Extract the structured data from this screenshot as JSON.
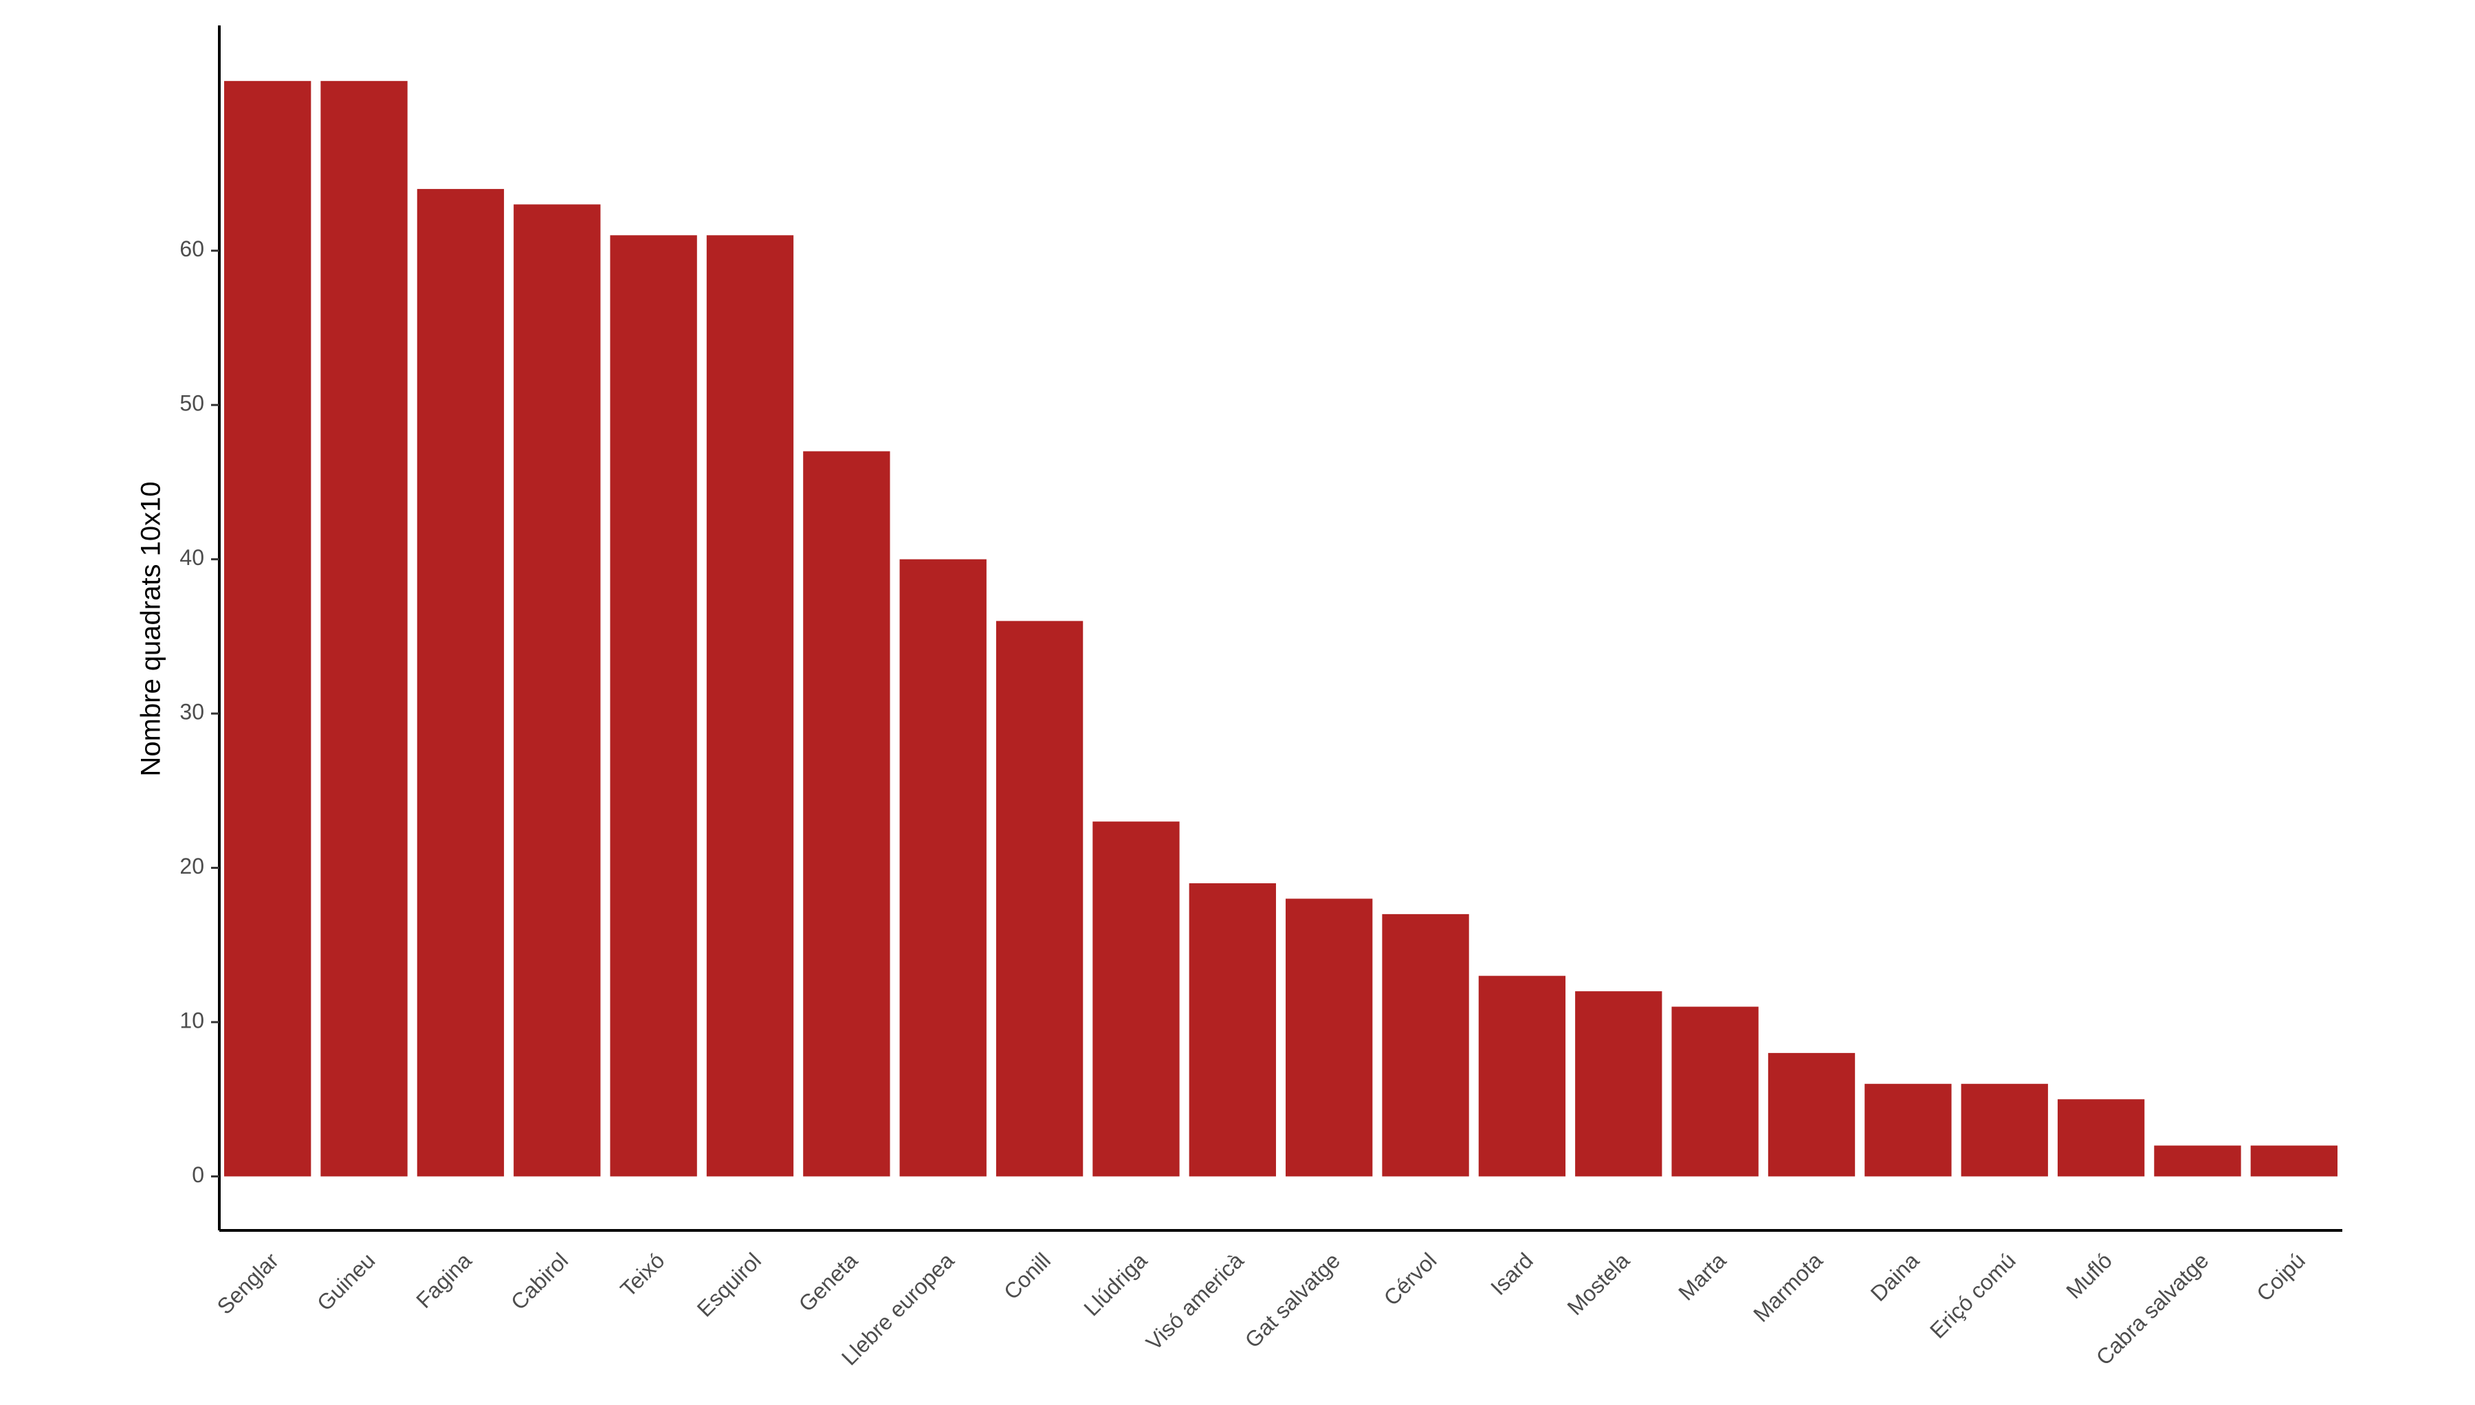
{
  "chart_data": {
    "type": "bar",
    "y_label": "Nombre quadrats 10x10",
    "categories": [
      "Senglar",
      "Guineu",
      "Fagina",
      "Cabirol",
      "Teixó",
      "Esquirol",
      "Geneta",
      "Llebre europea",
      "Conill",
      "Llúdriga",
      "Visó americà",
      "Gat salvatge",
      "Cérvol",
      "Isard",
      "Mostela",
      "Marta",
      "Marmota",
      "Daina",
      "Eriçó comú",
      "Mufló",
      "Cabra salvatge",
      "Coipú"
    ],
    "values": [
      71,
      71,
      64,
      63,
      61,
      61,
      47,
      40,
      36,
      23,
      19,
      18,
      17,
      13,
      12,
      11,
      8,
      6,
      6,
      5,
      2,
      2
    ],
    "color": "#b22222",
    "ylim": [
      -3.5,
      74.6
    ],
    "yticks": [
      0,
      10,
      20,
      30,
      40,
      50,
      60
    ],
    "grid": false
  }
}
